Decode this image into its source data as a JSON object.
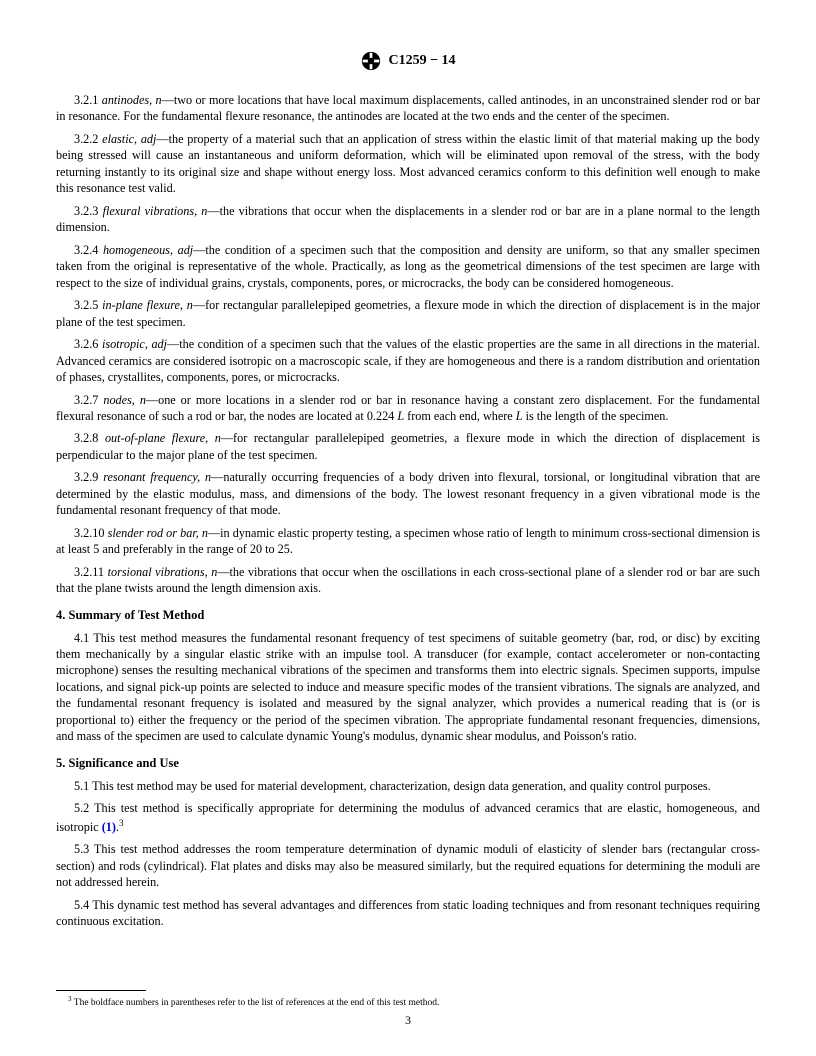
{
  "header": {
    "doc_id": "C1259 − 14"
  },
  "definitions": [
    {
      "num": "3.2.1",
      "term": "antinodes, n",
      "text": "—two or more locations that have local maximum displacements, called antinodes, in an unconstrained slender rod or bar in resonance. For the fundamental flexure resonance, the antinodes are located at the two ends and the center of the specimen."
    },
    {
      "num": "3.2.2",
      "term": "elastic, adj",
      "text": "—the property of a material such that an application of stress within the elastic limit of that material making up the body being stressed will cause an instantaneous and uniform deformation, which will be eliminated upon removal of the stress, with the body returning instantly to its original size and shape without energy loss. Most advanced ceramics conform to this definition well enough to make this resonance test valid."
    },
    {
      "num": "3.2.3",
      "term": "flexural vibrations, n",
      "text": "—the vibrations that occur when the displacements in a slender rod or bar are in a plane normal to the length dimension."
    },
    {
      "num": "3.2.4",
      "term": "homogeneous, adj",
      "text": "—the condition of a specimen such that the composition and density are uniform, so that any smaller specimen taken from the original is representative of the whole. Practically, as long as the geometrical dimensions of the test specimen are large with respect to the size of individual grains, crystals, components, pores, or microcracks, the body can be considered homogeneous."
    },
    {
      "num": "3.2.5",
      "term": "in-plane flexure, n",
      "text": "—for rectangular parallelepiped geometries, a flexure mode in which the direction of displacement is in the major plane of the test specimen."
    },
    {
      "num": "3.2.6",
      "term": "isotropic, adj",
      "text": "—the condition of a specimen such that the values of the elastic properties are the same in all directions in the material. Advanced ceramics are considered isotropic on a macroscopic scale, if they are homogeneous and there is a random distribution and orientation of phases, crystallites, components, pores, or microcracks."
    },
    {
      "num": "3.2.7",
      "term": "nodes, n",
      "text": "—one or more locations in a slender rod or bar in resonance having a constant zero displacement. For the fundamental flexural resonance of such a rod or bar, the nodes are located at 0.224 L from each end, where L is the length of the specimen."
    },
    {
      "num": "3.2.8",
      "term": "out-of-plane flexure, n",
      "text": "—for rectangular parallelepiped geometries, a flexure mode in which the direction of displacement is perpendicular to the major plane of the test specimen."
    },
    {
      "num": "3.2.9",
      "term": "resonant frequency, n",
      "text": "—naturally occurring frequencies of a body driven into flexural, torsional, or longitudinal vibration that are determined by the elastic modulus, mass, and dimensions of the body. The lowest resonant frequency in a given vibrational mode is the fundamental resonant frequency of that mode."
    },
    {
      "num": "3.2.10",
      "term": "slender rod or bar, n",
      "text": "—in dynamic elastic property testing, a specimen whose ratio of length to minimum cross-sectional dimension is at least 5 and preferably in the range of 20 to 25."
    },
    {
      "num": "3.2.11",
      "term": "torsional vibrations, n",
      "text": "—the vibrations that occur when the oscillations in each cross-sectional plane of a slender rod or bar are such that the plane twists around the length dimension axis."
    }
  ],
  "section4": {
    "title": "4. Summary of Test Method",
    "p1_num": "4.1",
    "p1_text": "This test method measures the fundamental resonant frequency of test specimens of suitable geometry (bar, rod, or disc) by exciting them mechanically by a singular elastic strike with an impulse tool. A transducer (for example, contact accelerometer or non-contacting microphone) senses the resulting mechanical vibrations of the specimen and transforms them into electric signals. Specimen supports, impulse locations, and signal pick-up points are selected to induce and measure specific modes of the transient vibrations. The signals are analyzed, and the fundamental resonant frequency is isolated and measured by the signal analyzer, which provides a numerical reading that is (or is proportional to) either the frequency or the period of the specimen vibration. The appropriate fundamental resonant frequencies, dimensions, and mass of the specimen are used to calculate dynamic Young's modulus, dynamic shear modulus, and Poisson's ratio."
  },
  "section5": {
    "title": "5. Significance and Use",
    "p1_num": "5.1",
    "p1_text": "This test method may be used for material development, characterization, design data generation, and quality control purposes.",
    "p2_num": "5.2",
    "p2_prefix": "This test method is specifically appropriate for determining the modulus of advanced ceramics that are elastic, homogeneous, and isotropic ",
    "p2_ref": "(1)",
    "p2_suffix": ".",
    "p2_sup": "3",
    "p3_num": "5.3",
    "p3_text": "This test method addresses the room temperature determination of dynamic moduli of elasticity of slender bars (rectangular cross-section) and rods (cylindrical). Flat plates and disks may also be measured similarly, but the required equations for determining the moduli are not addressed herein.",
    "p4_num": "5.4",
    "p4_text": "This dynamic test method has several advantages and differences from static loading techniques and from resonant techniques requiring continuous excitation."
  },
  "footnote": {
    "sup": "3",
    "text": " The boldface numbers in parentheses refer to the list of references at the end of this test method."
  },
  "page_number": "3"
}
